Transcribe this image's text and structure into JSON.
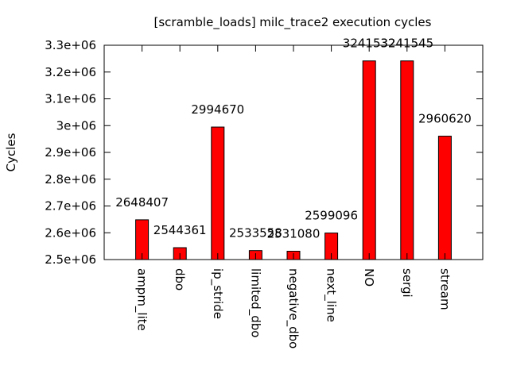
{
  "chart_data": {
    "type": "bar",
    "title": "[scramble_loads] milc_trace2 execution cycles",
    "ylabel": "Cycles",
    "xlabel": "",
    "ylim": [
      2500000,
      3300000
    ],
    "yticks": [
      {
        "value": 2500000,
        "label": "2.5e+06"
      },
      {
        "value": 2600000,
        "label": "2.6e+06"
      },
      {
        "value": 2700000,
        "label": "2.7e+06"
      },
      {
        "value": 2800000,
        "label": "2.8e+06"
      },
      {
        "value": 2900000,
        "label": "2.9e+06"
      },
      {
        "value": 3000000,
        "label": "3e+06"
      },
      {
        "value": 3100000,
        "label": "3.1e+06"
      },
      {
        "value": 3200000,
        "label": "3.2e+06"
      },
      {
        "value": 3300000,
        "label": "3.3e+06"
      }
    ],
    "categories": [
      "ampm_lite",
      "dbo",
      "ip_stride",
      "limited_dbo",
      "negative_dbo",
      "next_line",
      "NO",
      "sergi",
      "stream"
    ],
    "values": [
      2648407,
      2544361,
      2994670,
      2533558,
      2531080,
      2599096,
      3241532,
      3241545,
      2960620
    ],
    "bar_color": "#ff0000",
    "grid": false,
    "legend": "none"
  }
}
